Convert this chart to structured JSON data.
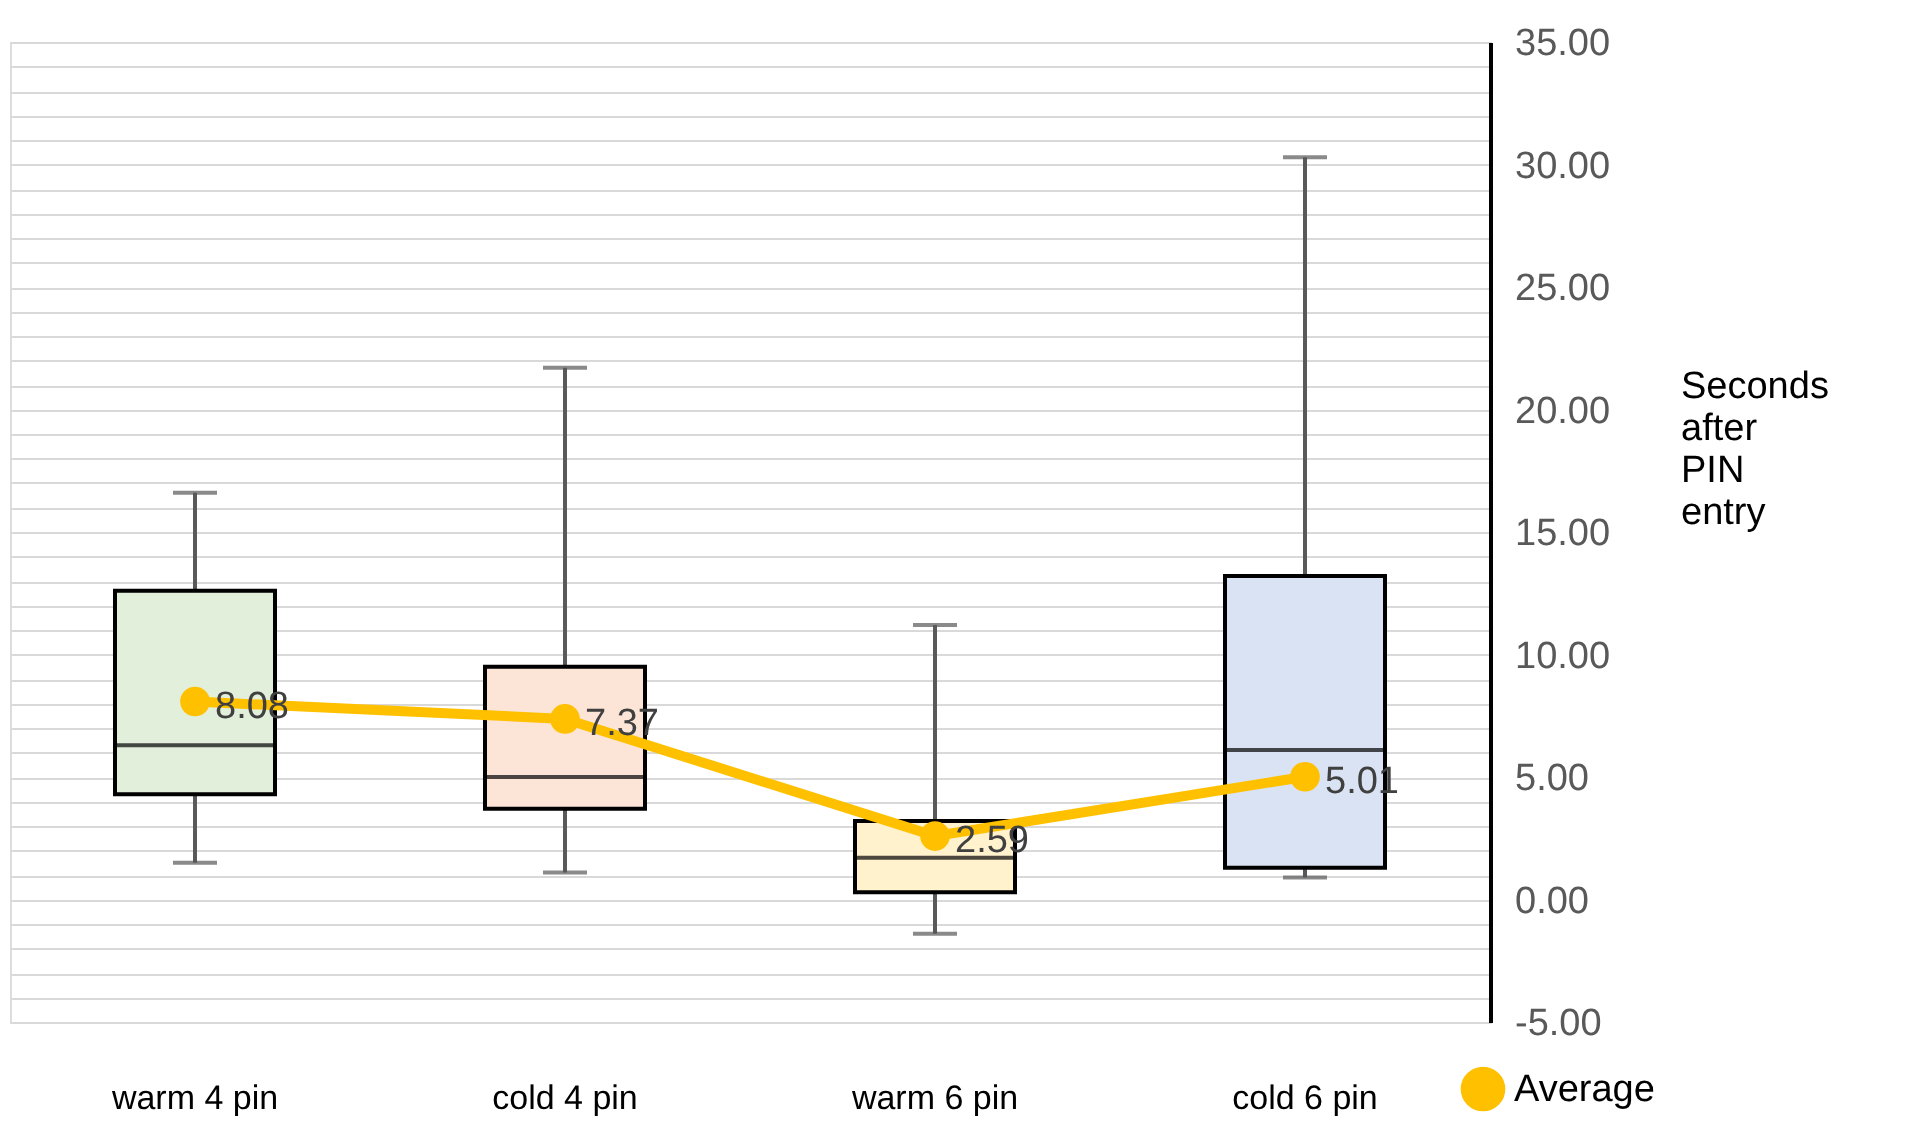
{
  "chart_data": {
    "type": "box",
    "categories": [
      "warm 4 pin",
      "cold 4 pin",
      "warm 6 pin",
      "cold 6 pin"
    ],
    "ylabel": "Seconds after PIN entry",
    "ylim": [
      -5,
      35
    ],
    "yticks": [
      {
        "value": -5,
        "label": "-5.00"
      },
      {
        "value": -4,
        "label": null
      },
      {
        "value": -3,
        "label": null
      },
      {
        "value": -2,
        "label": null
      },
      {
        "value": -1,
        "label": null
      },
      {
        "value": 0,
        "label": "0.00"
      },
      {
        "value": 1,
        "label": null
      },
      {
        "value": 2,
        "label": null
      },
      {
        "value": 3,
        "label": null
      },
      {
        "value": 4,
        "label": null
      },
      {
        "value": 5,
        "label": "5.00"
      },
      {
        "value": 6,
        "label": null
      },
      {
        "value": 7,
        "label": null
      },
      {
        "value": 8,
        "label": null
      },
      {
        "value": 9,
        "label": null
      },
      {
        "value": 10,
        "label": "10.00"
      },
      {
        "value": 11,
        "label": null
      },
      {
        "value": 12,
        "label": null
      },
      {
        "value": 13,
        "label": null
      },
      {
        "value": 14,
        "label": null
      },
      {
        "value": 15,
        "label": "15.00"
      },
      {
        "value": 16,
        "label": null
      },
      {
        "value": 17,
        "label": null
      },
      {
        "value": 18,
        "label": null
      },
      {
        "value": 19,
        "label": null
      },
      {
        "value": 20,
        "label": "20.00"
      },
      {
        "value": 21,
        "label": null
      },
      {
        "value": 22,
        "label": null
      },
      {
        "value": 23,
        "label": null
      },
      {
        "value": 24,
        "label": null
      },
      {
        "value": 25,
        "label": "25.00"
      },
      {
        "value": 26,
        "label": null
      },
      {
        "value": 27,
        "label": null
      },
      {
        "value": 28,
        "label": null
      },
      {
        "value": 29,
        "label": null
      },
      {
        "value": 30,
        "label": "30.00"
      },
      {
        "value": 31,
        "label": null
      },
      {
        "value": 32,
        "label": null
      },
      {
        "value": 33,
        "label": null
      },
      {
        "value": 34,
        "label": null
      },
      {
        "value": 35,
        "label": "35.00"
      }
    ],
    "grid": "y",
    "legend": "bottom right",
    "series": [
      {
        "colors": [
          "#e2efda",
          "#fce4d6",
          "#fff2cc",
          "#dae3f3"
        ],
        "boxes": [
          {
            "low": 1.5,
            "q1": 4.3,
            "median": 6.3,
            "q3": 12.6,
            "high": 16.6
          },
          {
            "low": 1.1,
            "q1": 3.7,
            "median": 5.0,
            "q3": 9.5,
            "high": 21.7
          },
          {
            "low": -1.4,
            "q1": 0.3,
            "median": 1.7,
            "q3": 3.2,
            "high": 11.2
          },
          {
            "low": 0.9,
            "q1": 1.3,
            "median": 6.1,
            "q3": 13.2,
            "high": 30.3
          }
        ]
      },
      {
        "type": "line",
        "name": "Average",
        "color": "#ffc000",
        "marker": "circle",
        "line_style": "solid",
        "values": [
          8.08,
          7.37,
          2.59,
          5.01
        ],
        "value_labels": [
          "8.08",
          "7.37",
          "2.59",
          "5.01"
        ]
      }
    ]
  }
}
